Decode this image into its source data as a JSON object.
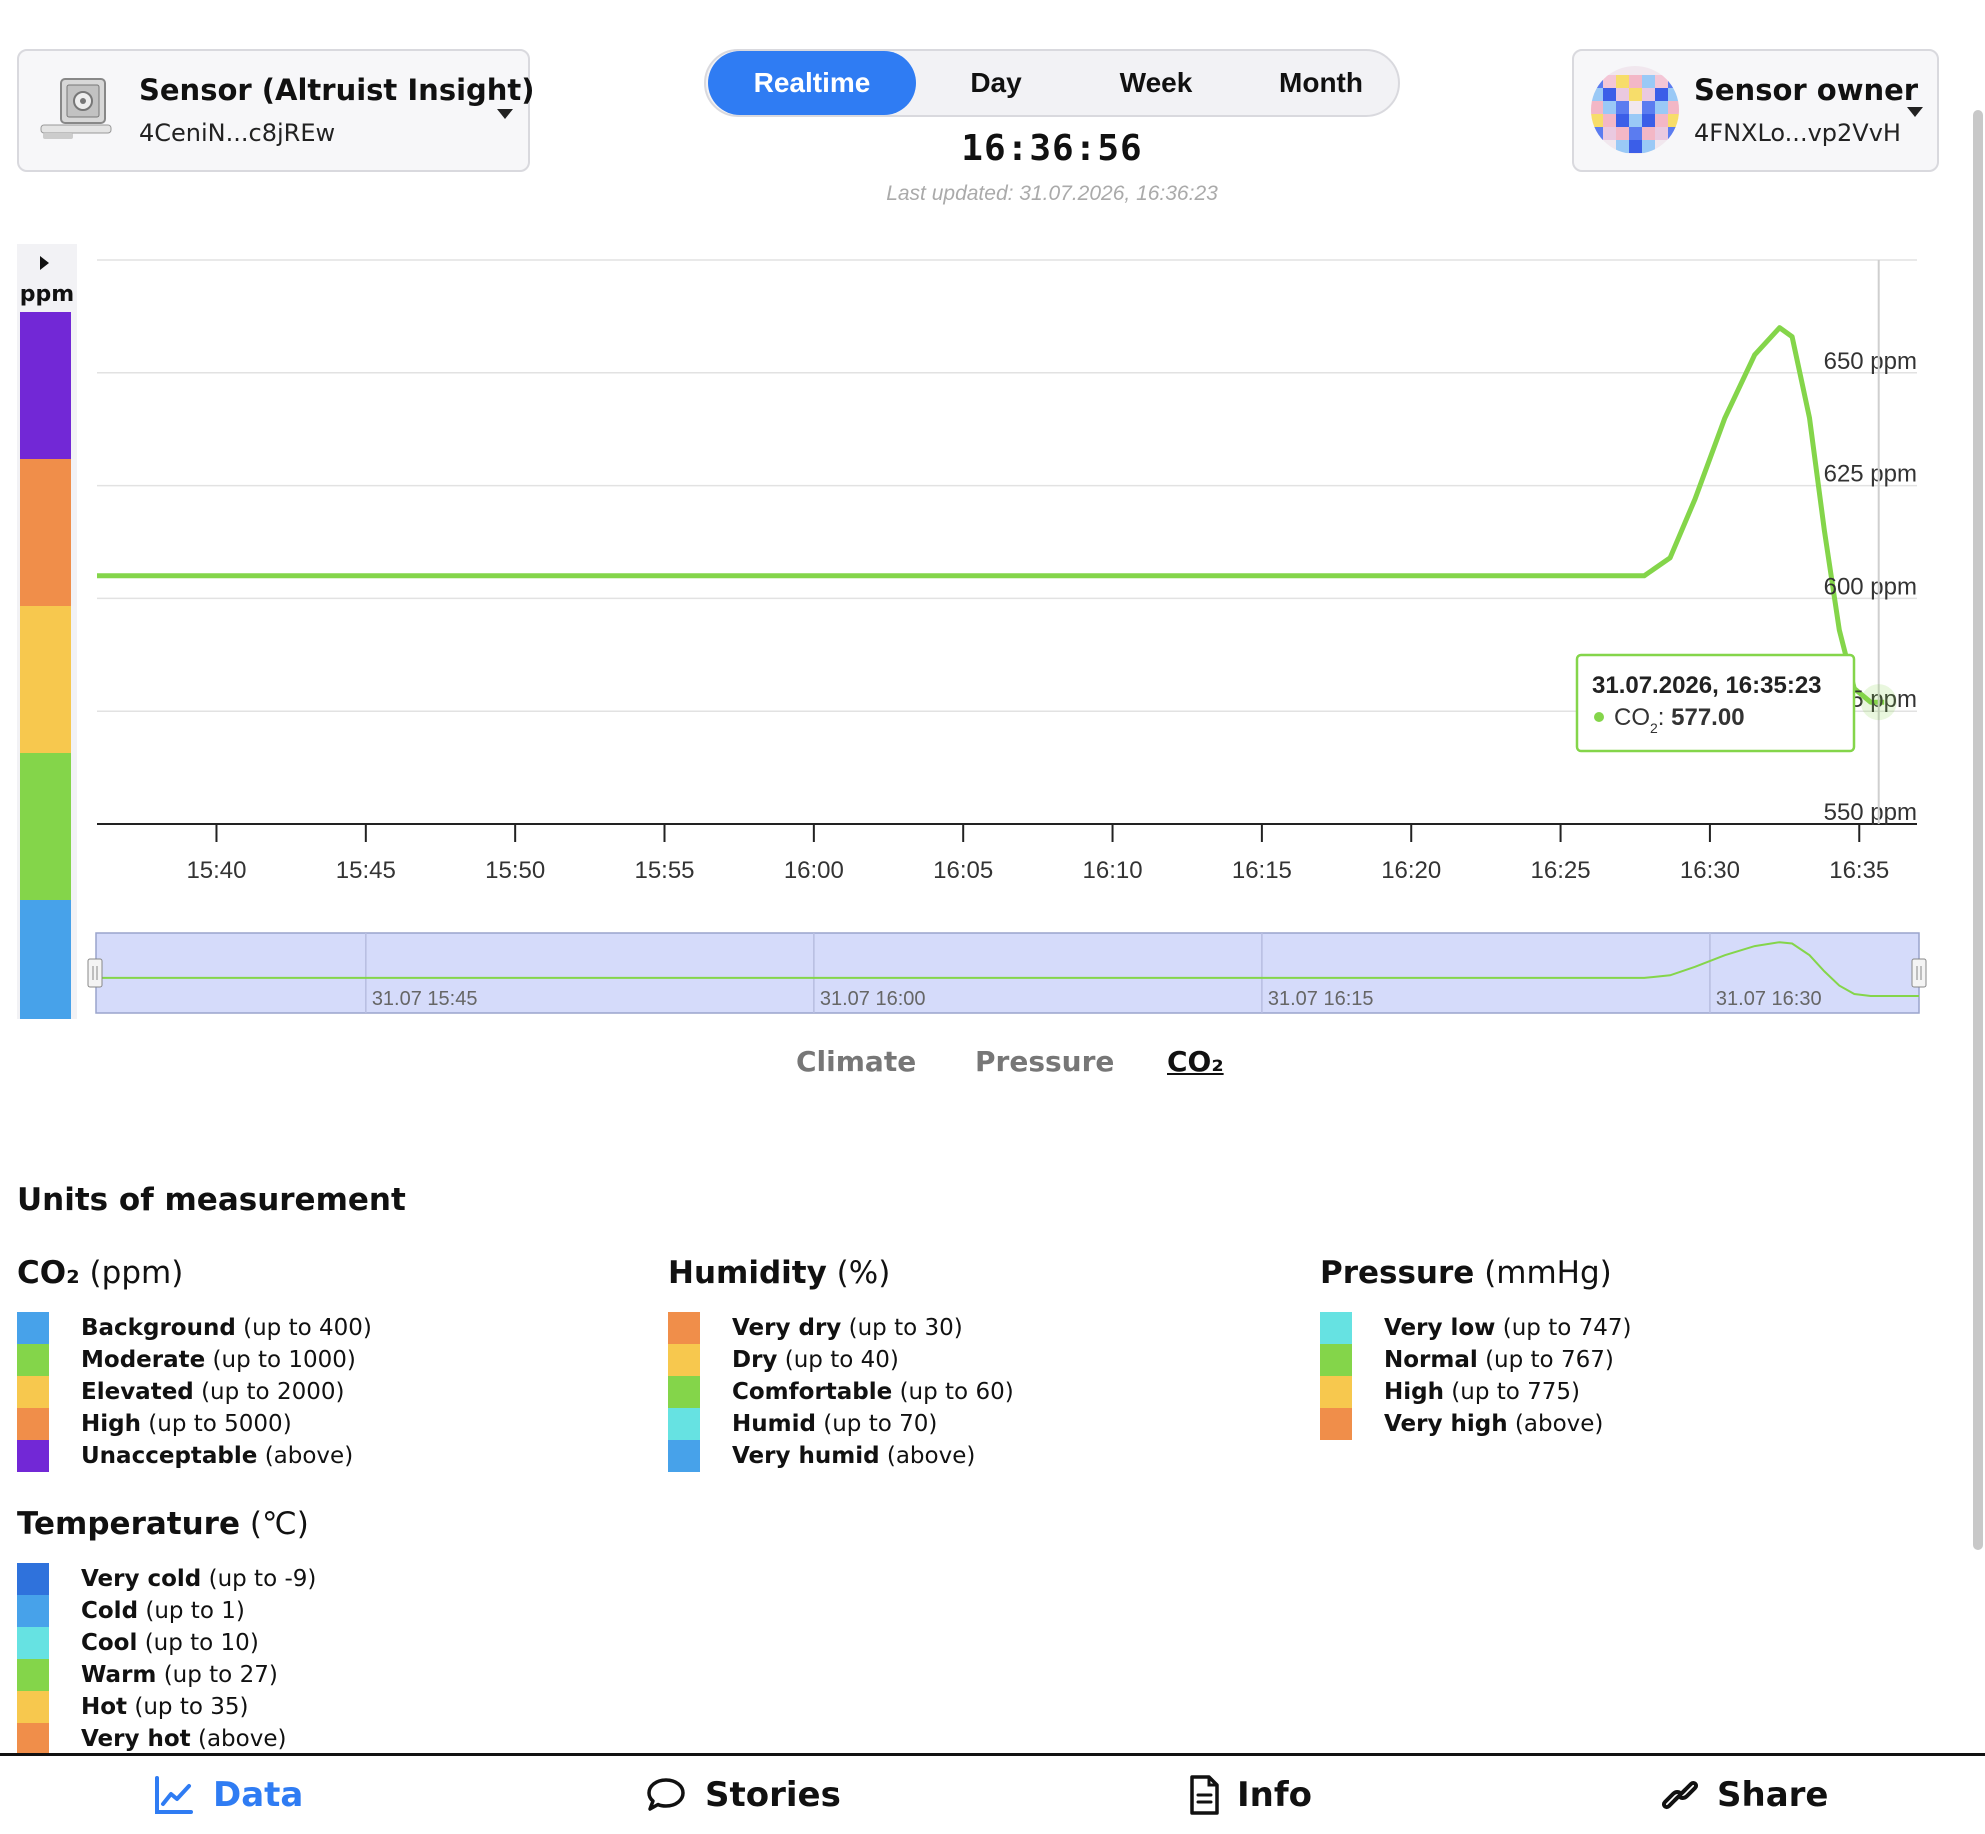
{
  "sensor": {
    "title": "Sensor (Altruist Insight)",
    "id": "4CeniN...c8jREw",
    "icon": "sensor-device-icon"
  },
  "owner": {
    "title": "Sensor owner",
    "id": "4FNXLo...vp2VvH",
    "icon": "identicon-avatar"
  },
  "periods": [
    "Realtime",
    "Day",
    "Week",
    "Month"
  ],
  "active_period": "Realtime",
  "clock": "16:36:56",
  "last_updated": "Last updated: 31.07.2026, 16:36:23",
  "scale": {
    "unit": "ppm",
    "toggle_icon": "caret-right-icon",
    "bands": [
      "#7228d6",
      "#f08e4a",
      "#f7c84e",
      "#84d54a",
      "#47a2ea"
    ]
  },
  "chart_data": {
    "type": "line",
    "series": [
      {
        "name": "CO₂",
        "color": "#84d54a",
        "points": [
          [
            "15:36",
            605
          ],
          [
            "15:40",
            605
          ],
          [
            "15:45",
            605
          ],
          [
            "15:50",
            605
          ],
          [
            "15:55",
            605
          ],
          [
            "16:00",
            605
          ],
          [
            "16:05",
            605
          ],
          [
            "16:10",
            605
          ],
          [
            "16:15",
            605
          ],
          [
            "16:20",
            605
          ],
          [
            "16:25",
            605
          ],
          [
            "16:27:48",
            605
          ],
          [
            "16:28:40",
            609
          ],
          [
            "16:29:30",
            622
          ],
          [
            "16:30:30",
            640
          ],
          [
            "16:31:30",
            654
          ],
          [
            "16:32:20",
            660
          ],
          [
            "16:32:45",
            658
          ],
          [
            "16:33:20",
            640
          ],
          [
            "16:33:50",
            615
          ],
          [
            "16:34:20",
            593
          ],
          [
            "16:34:50",
            580
          ],
          [
            "16:35:23",
            577
          ],
          [
            "16:35:50",
            577
          ]
        ]
      }
    ],
    "x_ticks": [
      "15:40",
      "15:45",
      "15:50",
      "15:55",
      "16:00",
      "16:05",
      "16:10",
      "16:15",
      "16:20",
      "16:25",
      "16:30",
      "16:35"
    ],
    "y_ticks": [
      "550 ppm",
      "575 ppm",
      "600 ppm",
      "625 ppm",
      "650 ppm"
    ],
    "ylim": [
      550,
      675
    ],
    "grid": true,
    "tooltip": {
      "title": "31.07.2026, 16:35:23",
      "series": "CO",
      "subscript": "2",
      "value": "577.00"
    },
    "navigator_labels": [
      "31.07 15:45",
      "31.07 16:00",
      "31.07 16:15",
      "31.07 16:30"
    ]
  },
  "data_tabs": [
    "Climate",
    "Pressure",
    "CO₂"
  ],
  "active_tab": "CO₂",
  "units": {
    "title": "Units of measurement",
    "groups": [
      {
        "name": "CO₂",
        "unit": "(ppm)",
        "items": [
          {
            "label": "Background",
            "range": "(up to 400)",
            "color": "#47a2ea"
          },
          {
            "label": "Moderate",
            "range": "(up to 1000)",
            "color": "#84d54a"
          },
          {
            "label": "Elevated",
            "range": "(up to 2000)",
            "color": "#f7c84e"
          },
          {
            "label": "High",
            "range": "(up to 5000)",
            "color": "#f08e4a"
          },
          {
            "label": "Unacceptable",
            "range": "(above)",
            "color": "#7228d6"
          }
        ]
      },
      {
        "name": "Humidity",
        "unit": "(%)",
        "items": [
          {
            "label": "Very dry",
            "range": "(up to 30)",
            "color": "#f08e4a"
          },
          {
            "label": "Dry",
            "range": "(up to 40)",
            "color": "#f7c84e"
          },
          {
            "label": "Comfortable",
            "range": "(up to 60)",
            "color": "#84d54a"
          },
          {
            "label": "Humid",
            "range": "(up to 70)",
            "color": "#66e2e2"
          },
          {
            "label": "Very humid",
            "range": "(above)",
            "color": "#47a2ea"
          }
        ]
      },
      {
        "name": "Pressure",
        "unit": "(mmHg)",
        "items": [
          {
            "label": "Very low",
            "range": "(up to 747)",
            "color": "#66e2e2"
          },
          {
            "label": "Normal",
            "range": "(up to 767)",
            "color": "#84d54a"
          },
          {
            "label": "High",
            "range": "(up to 775)",
            "color": "#f7c84e"
          },
          {
            "label": "Very high",
            "range": "(above)",
            "color": "#f08e4a"
          }
        ]
      },
      {
        "name": "Temperature",
        "unit": "(℃)",
        "items": [
          {
            "label": "Very cold",
            "range": "(up to -9)",
            "color": "#2f72dc"
          },
          {
            "label": "Cold",
            "range": "(up to 1)",
            "color": "#47a2ea"
          },
          {
            "label": "Cool",
            "range": "(up to 10)",
            "color": "#66e2e2"
          },
          {
            "label": "Warm",
            "range": "(up to 27)",
            "color": "#84d54a"
          },
          {
            "label": "Hot",
            "range": "(up to 35)",
            "color": "#f7c84e"
          },
          {
            "label": "Very hot",
            "range": "(above)",
            "color": "#f08e4a"
          }
        ]
      }
    ]
  },
  "nav": [
    {
      "label": "Data",
      "icon": "line-chart-icon",
      "active": true
    },
    {
      "label": "Stories",
      "icon": "speech-bubble-icon",
      "active": false
    },
    {
      "label": "Info",
      "icon": "document-icon",
      "active": false
    },
    {
      "label": "Share",
      "icon": "link-icon",
      "active": false
    }
  ],
  "accent_color": "#2f7cf3"
}
